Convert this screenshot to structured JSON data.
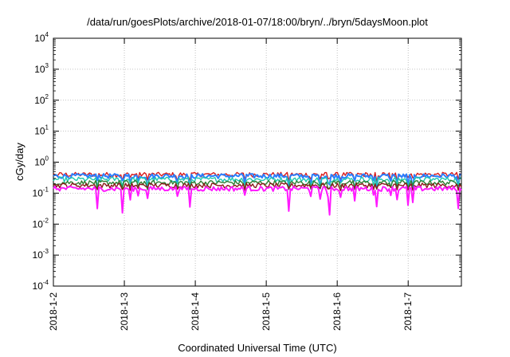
{
  "chart_data": {
    "type": "line",
    "title": "/data/run/goesPlots/archive/2018-01-07/18:00/bryn/../bryn/5daysMoon.plot",
    "xlabel": "Coordinated Universal Time (UTC)",
    "ylabel": "cGy/day",
    "y_scale": "log",
    "ylim": [
      0.0001,
      10000
    ],
    "xlim": [
      "2018-01-02",
      "2018-01-07 18:00"
    ],
    "grid": true,
    "x_ticks": [
      "2018-1-2",
      "2018-1-3",
      "2018-1-4",
      "2018-1-5",
      "2018-1-6",
      "2018-1-7"
    ],
    "y_ticks": [
      {
        "base": "10",
        "exp": "4",
        "value": 10000
      },
      {
        "base": "10",
        "exp": "3",
        "value": 1000
      },
      {
        "base": "10",
        "exp": "2",
        "value": 100
      },
      {
        "base": "10",
        "exp": "1",
        "value": 10
      },
      {
        "base": "10",
        "exp": "0",
        "value": 1
      },
      {
        "base": "10",
        "exp": "-1",
        "value": 0.1
      },
      {
        "base": "10",
        "exp": "-2",
        "value": 0.01
      },
      {
        "base": "10",
        "exp": "-3",
        "value": 0.001
      },
      {
        "base": "10",
        "exp": "-4",
        "value": 0.0001
      }
    ],
    "series": [
      {
        "color": "#d81b1b",
        "level": 0.4,
        "dip": 0.12
      },
      {
        "color": "#2a7fff",
        "level": 0.36,
        "dip": 0.18
      },
      {
        "color": "#1fc8b0",
        "level": 0.28,
        "dip": 0.14
      },
      {
        "color": "#2e7d32",
        "level": 0.22,
        "dip": 0.12
      },
      {
        "color": "#8b1a1a",
        "level": 0.18,
        "dip": 0.1
      },
      {
        "color": "#ff1aff",
        "level": 0.14,
        "dip": 0.25
      }
    ]
  }
}
